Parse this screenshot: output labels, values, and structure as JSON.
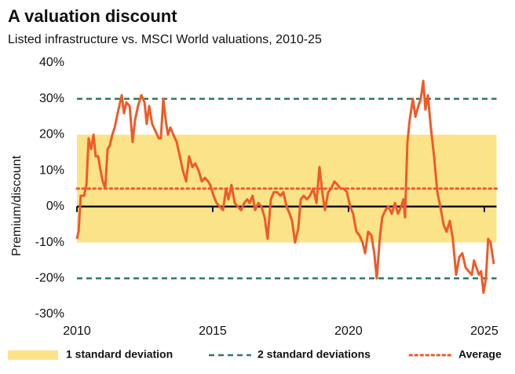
{
  "chart_data": {
    "type": "line",
    "title": "A valuation discount",
    "subtitle": "Listed infrastructure vs. MSCI World valuations, 2010-25",
    "y_label": "Premium/discount",
    "xlim": [
      2010,
      2025.45
    ],
    "xticks": [
      2010,
      2015,
      2020,
      2025
    ],
    "ylim": [
      -30,
      40
    ],
    "yticks": [
      {
        "value": 40,
        "label": "40%"
      },
      {
        "value": 30,
        "label": "30%"
      },
      {
        "value": 20,
        "label": "20%"
      },
      {
        "value": 10,
        "label": "10%"
      },
      {
        "value": 0,
        "label": "0%"
      },
      {
        "value": -10,
        "label": "-10%"
      },
      {
        "value": -20,
        "label": "-20%"
      },
      {
        "value": -30,
        "label": "-30%"
      }
    ],
    "zero_line": true,
    "bands": [
      {
        "name": "1 standard deviation",
        "range": [
          -10,
          20
        ],
        "color": "#fbe38a"
      }
    ],
    "reference_lines": [
      {
        "name": "2 standard deviations",
        "values": [
          30,
          -20
        ],
        "color": "#2f7d57",
        "style": "dashed"
      },
      {
        "name": "Average",
        "values": [
          5
        ],
        "color": "#f05a28",
        "style": "dotted"
      }
    ],
    "series": [
      {
        "color": "#f05a28",
        "x": [
          2010.0,
          2010.06,
          2010.14,
          2010.26,
          2010.35,
          2010.43,
          2010.52,
          2010.61,
          2010.69,
          2010.78,
          2010.87,
          2010.95,
          2011.04,
          2011.13,
          2011.21,
          2011.3,
          2011.39,
          2011.5,
          2011.65,
          2011.73,
          2011.82,
          2011.94,
          2012.05,
          2012.14,
          2012.25,
          2012.37,
          2012.49,
          2012.57,
          2012.66,
          2012.77,
          2012.89,
          2013.01,
          2013.09,
          2013.18,
          2013.27,
          2013.35,
          2013.44,
          2013.55,
          2013.67,
          2013.79,
          2013.9,
          2014.02,
          2014.13,
          2014.25,
          2014.36,
          2014.48,
          2014.6,
          2014.71,
          2014.83,
          2014.91,
          2015.03,
          2015.14,
          2015.26,
          2015.38,
          2015.49,
          2015.58,
          2015.69,
          2015.81,
          2015.92,
          2016.04,
          2016.16,
          2016.27,
          2016.36,
          2016.47,
          2016.56,
          2016.68,
          2016.79,
          2016.91,
          2017.02,
          2017.14,
          2017.25,
          2017.37,
          2017.49,
          2017.6,
          2017.72,
          2017.83,
          2017.92,
          2018.03,
          2018.15,
          2018.24,
          2018.35,
          2018.47,
          2018.58,
          2018.7,
          2018.82,
          2018.93,
          2019.05,
          2019.13,
          2019.25,
          2019.36,
          2019.48,
          2019.6,
          2019.71,
          2019.83,
          2019.94,
          2020.06,
          2020.17,
          2020.29,
          2020.4,
          2020.52,
          2020.61,
          2020.72,
          2020.84,
          2020.95,
          2021.04,
          2021.16,
          2021.24,
          2021.36,
          2021.47,
          2021.59,
          2021.71,
          2021.82,
          2021.94,
          2022.02,
          2022.08,
          2022.17,
          2022.25,
          2022.37,
          2022.46,
          2022.57,
          2022.66,
          2022.75,
          2022.83,
          2022.92,
          2023.03,
          2023.15,
          2023.27,
          2023.38,
          2023.5,
          2023.61,
          2023.73,
          2023.84,
          2023.96,
          2024.08,
          2024.19,
          2024.31,
          2024.42,
          2024.54,
          2024.62,
          2024.71,
          2024.8,
          2024.88,
          2024.97,
          2025.06,
          2025.14,
          2025.23,
          2025.35
        ],
        "values": [
          -9,
          -7,
          3,
          3,
          6,
          19,
          16,
          20,
          14,
          14,
          10,
          7,
          5,
          16,
          17,
          20,
          22,
          26,
          31,
          26,
          29,
          28,
          18,
          24,
          28,
          31,
          29,
          23,
          28,
          23,
          21,
          19,
          19,
          30,
          24,
          20,
          22,
          20,
          18,
          14,
          10,
          7,
          14,
          11,
          12,
          10,
          7,
          8,
          7,
          6,
          3,
          1,
          0,
          -1,
          5,
          2,
          6,
          1,
          0,
          -1,
          1,
          2,
          1,
          3,
          -1,
          1,
          0,
          -3,
          -9,
          2,
          4,
          4,
          3,
          4,
          0,
          -2,
          -4,
          -10,
          -6,
          2,
          3,
          2,
          3,
          5,
          1,
          11,
          3,
          -1,
          4,
          5,
          7,
          6,
          5,
          5,
          4,
          0,
          -2,
          -7,
          -8,
          -10,
          -13,
          -7,
          -8,
          -13,
          -20,
          -8,
          -3,
          -1,
          0,
          -2,
          1,
          -2,
          0,
          2,
          -3,
          18,
          24,
          30,
          25,
          28,
          30,
          35,
          27,
          31,
          22,
          14,
          4,
          0,
          -5,
          -7,
          -4,
          -9,
          -19,
          -14,
          -13,
          -17,
          -18,
          -19,
          -15,
          -17,
          -19,
          -18,
          -24,
          -20,
          -9,
          -10,
          -16
        ]
      }
    ]
  }
}
